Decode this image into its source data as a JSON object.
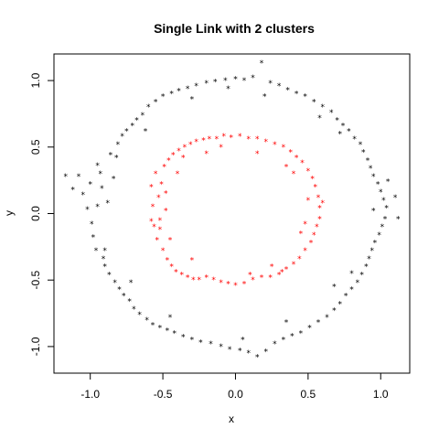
{
  "chart_data": {
    "type": "scatter",
    "title": "Single Link with 2 clusters",
    "xlabel": "x",
    "ylabel": "y",
    "xlim": [
      -1.25,
      1.2
    ],
    "ylim": [
      -1.2,
      1.2
    ],
    "xticks": [
      -1.0,
      -0.5,
      0.0,
      0.5,
      1.0
    ],
    "yticks": [
      -1.0,
      -0.5,
      0.0,
      0.5,
      1.0
    ],
    "xtick_labels": [
      "-1.0",
      "-0.5",
      "0.0",
      "0.5",
      "1.0"
    ],
    "ytick_labels": [
      "-1.0",
      "-0.5",
      "0.0",
      "0.5",
      "1.0"
    ],
    "grid": false,
    "legend": "none",
    "marker": "*",
    "series": [
      {
        "color": "#000000",
        "points": [
          [
            -1.17,
            0.28
          ],
          [
            -1.12,
            0.18
          ],
          [
            -1.08,
            0.28
          ],
          [
            -1.05,
            0.14
          ],
          [
            -1.02,
            0.03
          ],
          [
            -1.0,
            0.22
          ],
          [
            -0.99,
            -0.08
          ],
          [
            -0.98,
            -0.18
          ],
          [
            -0.96,
            -0.28
          ],
          [
            -0.95,
            0.36
          ],
          [
            -0.93,
            0.3
          ],
          [
            -0.92,
            0.19
          ],
          [
            -0.91,
            -0.34
          ],
          [
            -0.9,
            -0.4
          ],
          [
            -0.88,
            0.08
          ],
          [
            -0.87,
            -0.46
          ],
          [
            -0.86,
            0.44
          ],
          [
            -0.84,
            0.26
          ],
          [
            -0.83,
            -0.52
          ],
          [
            -0.81,
            0.52
          ],
          [
            -0.8,
            -0.57
          ],
          [
            -0.78,
            0.58
          ],
          [
            -0.77,
            -0.62
          ],
          [
            -0.75,
            0.62
          ],
          [
            -0.73,
            -0.66
          ],
          [
            -0.71,
            0.66
          ],
          [
            -0.7,
            -0.72
          ],
          [
            -0.68,
            0.7
          ],
          [
            -0.66,
            -0.76
          ],
          [
            -0.64,
            0.74
          ],
          [
            -0.61,
            -0.8
          ],
          [
            -0.6,
            0.8
          ],
          [
            -0.57,
            -0.84
          ],
          [
            -0.55,
            0.84
          ],
          [
            -0.52,
            -0.86
          ],
          [
            -0.5,
            0.88
          ],
          [
            -0.47,
            -0.88
          ],
          [
            -0.44,
            0.9
          ],
          [
            -0.42,
            -0.9
          ],
          [
            -0.39,
            0.92
          ],
          [
            -0.36,
            -0.93
          ],
          [
            -0.33,
            0.94
          ],
          [
            -0.3,
            -0.95
          ],
          [
            -0.27,
            0.96
          ],
          [
            -0.24,
            -0.97
          ],
          [
            -0.2,
            0.98
          ],
          [
            -0.17,
            -0.98
          ],
          [
            -0.14,
            0.99
          ],
          [
            -0.1,
            -1.0
          ],
          [
            -0.07,
            1.0
          ],
          [
            -0.04,
            -1.02
          ],
          [
            0.0,
            1.01
          ],
          [
            0.03,
            -1.03
          ],
          [
            0.06,
            1.0
          ],
          [
            0.09,
            -1.05
          ],
          [
            0.12,
            1.02
          ],
          [
            0.15,
            -1.08
          ],
          [
            0.18,
            1.13
          ],
          [
            0.21,
            -1.04
          ],
          [
            0.24,
            0.98
          ],
          [
            0.27,
            -0.98
          ],
          [
            0.3,
            0.96
          ],
          [
            0.33,
            -0.95
          ],
          [
            0.36,
            0.93
          ],
          [
            0.39,
            -0.92
          ],
          [
            0.42,
            0.9
          ],
          [
            0.45,
            -0.9
          ],
          [
            0.48,
            0.88
          ],
          [
            0.51,
            -0.86
          ],
          [
            0.54,
            0.84
          ],
          [
            0.57,
            -0.82
          ],
          [
            0.6,
            0.8
          ],
          [
            0.63,
            -0.78
          ],
          [
            0.66,
            0.76
          ],
          [
            0.68,
            -0.73
          ],
          [
            0.7,
            0.7
          ],
          [
            0.72,
            -0.68
          ],
          [
            0.74,
            0.66
          ],
          [
            0.76,
            -0.62
          ],
          [
            0.78,
            0.62
          ],
          [
            0.8,
            -0.57
          ],
          [
            0.82,
            0.56
          ],
          [
            0.84,
            -0.52
          ],
          [
            0.86,
            0.52
          ],
          [
            0.87,
            -0.46
          ],
          [
            0.88,
            0.46
          ],
          [
            0.9,
            -0.4
          ],
          [
            0.91,
            0.4
          ],
          [
            0.92,
            -0.34
          ],
          [
            0.93,
            0.34
          ],
          [
            0.94,
            -0.28
          ],
          [
            0.95,
            0.28
          ],
          [
            0.96,
            -0.22
          ],
          [
            0.98,
            0.22
          ],
          [
            0.99,
            -0.16
          ],
          [
            1.0,
            0.16
          ],
          [
            1.01,
            -0.1
          ],
          [
            1.02,
            0.1
          ],
          [
            1.03,
            -0.04
          ],
          [
            1.04,
            0.04
          ],
          [
            1.05,
            0.24
          ],
          [
            1.1,
            0.12
          ],
          [
            1.12,
            -0.04
          ],
          [
            -0.82,
            0.42
          ],
          [
            -0.62,
            0.62
          ],
          [
            -0.9,
            -0.28
          ],
          [
            0.72,
            0.6
          ],
          [
            0.58,
            0.72
          ],
          [
            0.8,
            -0.45
          ],
          [
            -0.45,
            -0.78
          ],
          [
            0.35,
            -0.82
          ],
          [
            -0.3,
            0.86
          ],
          [
            0.2,
            0.88
          ],
          [
            -0.72,
            -0.52
          ],
          [
            0.68,
            -0.55
          ],
          [
            -0.95,
            0.05
          ],
          [
            0.95,
            0.02
          ],
          [
            -0.05,
            0.94
          ],
          [
            0.05,
            -0.95
          ]
        ]
      },
      {
        "color": "#ff0000",
        "points": [
          [
            -0.58,
            0.2
          ],
          [
            -0.57,
            0.05
          ],
          [
            -0.56,
            -0.1
          ],
          [
            -0.55,
            0.3
          ],
          [
            -0.54,
            -0.2
          ],
          [
            -0.53,
            0.12
          ],
          [
            -0.52,
            -0.05
          ],
          [
            -0.51,
            0.22
          ],
          [
            -0.5,
            -0.28
          ],
          [
            -0.49,
            0.35
          ],
          [
            -0.48,
            0.02
          ],
          [
            -0.47,
            -0.35
          ],
          [
            -0.46,
            0.4
          ],
          [
            -0.44,
            -0.4
          ],
          [
            -0.43,
            0.44
          ],
          [
            -0.41,
            -0.44
          ],
          [
            -0.39,
            0.47
          ],
          [
            -0.37,
            -0.46
          ],
          [
            -0.35,
            0.5
          ],
          [
            -0.33,
            -0.48
          ],
          [
            -0.31,
            0.52
          ],
          [
            -0.29,
            -0.5
          ],
          [
            -0.27,
            0.54
          ],
          [
            -0.25,
            -0.5
          ],
          [
            -0.22,
            0.55
          ],
          [
            -0.2,
            -0.48
          ],
          [
            -0.18,
            0.56
          ],
          [
            -0.15,
            -0.5
          ],
          [
            -0.13,
            0.56
          ],
          [
            -0.1,
            -0.52
          ],
          [
            -0.08,
            0.58
          ],
          [
            -0.05,
            -0.53
          ],
          [
            -0.03,
            0.57
          ],
          [
            0.0,
            -0.54
          ],
          [
            0.03,
            0.58
          ],
          [
            0.06,
            -0.53
          ],
          [
            0.09,
            0.56
          ],
          [
            0.12,
            -0.5
          ],
          [
            0.15,
            0.56
          ],
          [
            0.18,
            -0.48
          ],
          [
            0.21,
            0.54
          ],
          [
            0.24,
            -0.48
          ],
          [
            0.27,
            0.52
          ],
          [
            0.3,
            -0.46
          ],
          [
            0.33,
            0.5
          ],
          [
            0.35,
            -0.42
          ],
          [
            0.38,
            0.46
          ],
          [
            0.4,
            -0.38
          ],
          [
            0.42,
            0.42
          ],
          [
            0.44,
            -0.34
          ],
          [
            0.46,
            0.38
          ],
          [
            0.48,
            -0.28
          ],
          [
            0.5,
            0.32
          ],
          [
            0.52,
            -0.22
          ],
          [
            0.53,
            0.26
          ],
          [
            0.54,
            -0.16
          ],
          [
            0.55,
            0.2
          ],
          [
            0.56,
            -0.1
          ],
          [
            0.57,
            0.12
          ],
          [
            0.58,
            -0.04
          ],
          [
            0.58,
            0.04
          ],
          [
            0.6,
            0.08
          ],
          [
            -0.58,
            -0.06
          ],
          [
            -0.4,
            0.3
          ],
          [
            -0.45,
            -0.2
          ],
          [
            0.4,
            0.3
          ],
          [
            0.45,
            -0.15
          ],
          [
            0.35,
            0.35
          ],
          [
            -0.3,
            -0.35
          ],
          [
            0.25,
            -0.4
          ],
          [
            -0.2,
            0.45
          ],
          [
            0.15,
            0.45
          ],
          [
            -0.48,
            0.15
          ],
          [
            0.5,
            0.1
          ],
          [
            -0.52,
            -0.12
          ],
          [
            0.48,
            -0.08
          ],
          [
            -0.36,
            0.42
          ],
          [
            0.32,
            -0.44
          ],
          [
            -0.1,
            0.5
          ],
          [
            0.1,
            -0.46
          ]
        ]
      }
    ]
  }
}
